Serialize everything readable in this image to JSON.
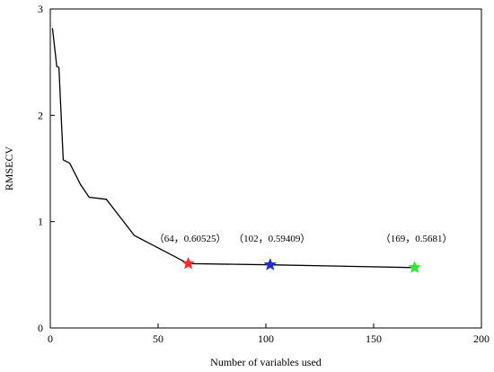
{
  "chart_data": {
    "type": "line",
    "title": "",
    "xlabel": "Number of variables used",
    "ylabel": "RMSECV",
    "xlim": [
      0,
      200
    ],
    "ylim": [
      0,
      3
    ],
    "x_ticks": [
      0,
      50,
      100,
      150,
      200
    ],
    "y_ticks": [
      0,
      1,
      2,
      3
    ],
    "grid": false,
    "series": [
      {
        "x": [
          1,
          3,
          4,
          6,
          9,
          14,
          18,
          26,
          39,
          64,
          102,
          169
        ],
        "y": [
          2.82,
          2.46,
          2.45,
          1.58,
          1.55,
          1.35,
          1.23,
          1.21,
          0.87,
          0.60525,
          0.59409,
          0.5681
        ],
        "color": "#000000"
      }
    ],
    "markers": [
      {
        "x": 64,
        "y": 0.60525,
        "color": "#ff2a2a",
        "label": "（64，0.60525）"
      },
      {
        "x": 102,
        "y": 0.59409,
        "color": "#1f2fd6",
        "label": "（102，0.59409）"
      },
      {
        "x": 169,
        "y": 0.5681,
        "color": "#33e633",
        "label": "（169，0.5681）"
      }
    ]
  }
}
